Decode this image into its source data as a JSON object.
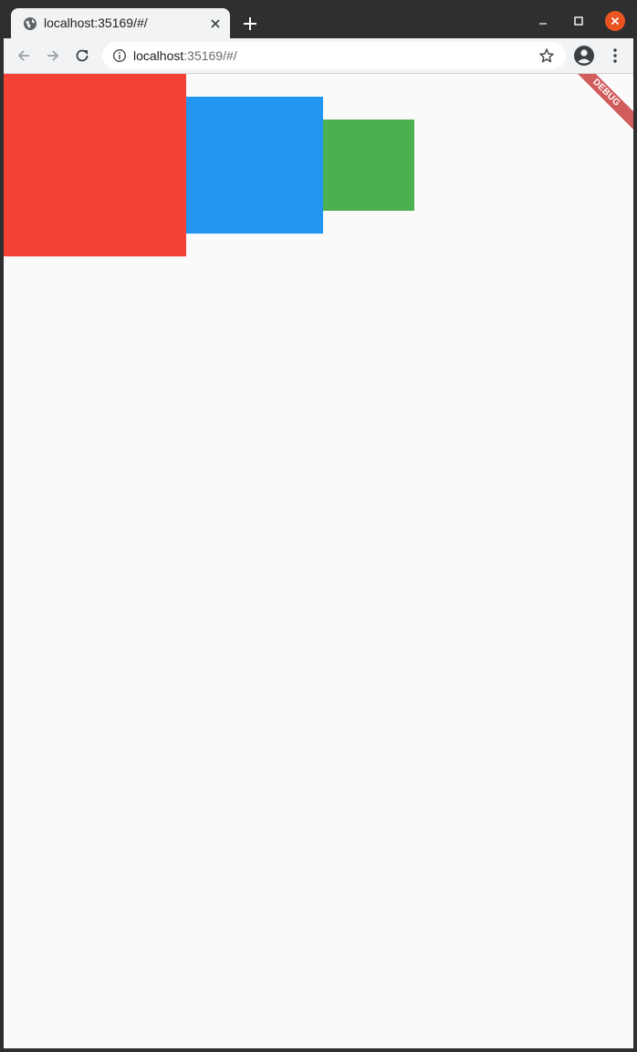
{
  "browser": {
    "tab": {
      "title": "localhost:35169/#/",
      "favicon": "globe-icon",
      "close_icon": "close-icon"
    },
    "new_tab_icon": "plus-icon",
    "window_controls": [
      "minimize-icon",
      "maximize-icon",
      "close-icon"
    ],
    "toolbar": {
      "back_icon": "arrow-left-icon",
      "forward_icon": "arrow-right-icon",
      "reload_icon": "reload-icon",
      "address": {
        "info_icon": "info-icon",
        "host": "localhost",
        "rest": ":35169/#/"
      },
      "bookmark_icon": "star-icon",
      "profile_icon": "account-icon",
      "menu_icon": "kebab-menu-icon"
    }
  },
  "app": {
    "debug_banner": "DEBUG",
    "boxes": [
      {
        "name": "red",
        "color": "#f44336"
      },
      {
        "name": "blue",
        "color": "#2196f3"
      },
      {
        "name": "green",
        "color": "#4caf50"
      }
    ]
  },
  "colors": {
    "titlebar": "#2f2f2f",
    "toolbar": "#f1f3f4",
    "page_background": "#fafafa",
    "window_close": "#e95420"
  }
}
